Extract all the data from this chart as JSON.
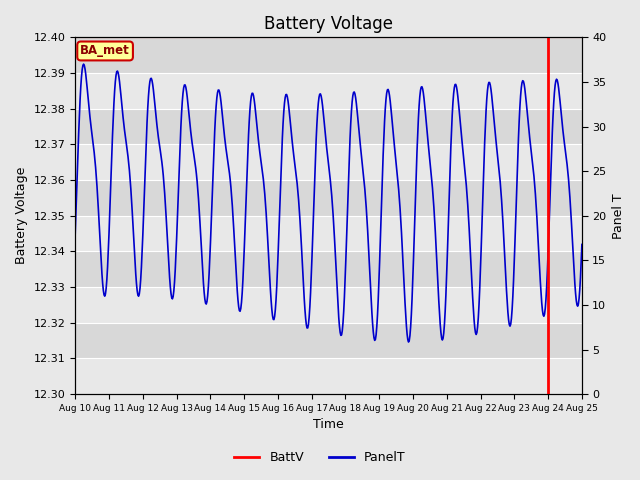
{
  "title": "Battery Voltage",
  "xlabel": "Time",
  "ylabel_left": "Battery Voltage",
  "ylabel_right": "Panel T",
  "ylim_left": [
    12.3,
    12.4
  ],
  "ylim_right": [
    0,
    40
  ],
  "yticks_left": [
    12.3,
    12.31,
    12.32,
    12.33,
    12.34,
    12.35,
    12.36,
    12.37,
    12.38,
    12.39,
    12.4
  ],
  "yticks_right": [
    0,
    5,
    10,
    15,
    20,
    25,
    30,
    35,
    40
  ],
  "xtick_labels": [
    "Aug 10",
    "Aug 11",
    "Aug 12",
    "Aug 13",
    "Aug 14",
    "Aug 15",
    "Aug 16",
    "Aug 17",
    "Aug 18",
    "Aug 19",
    "Aug 20",
    "Aug 21",
    "Aug 22",
    "Aug 23",
    "Aug 24",
    "Aug 25"
  ],
  "vline_color": "#ff0000",
  "batt_line_color": "#ff0000",
  "panel_line_color": "#0000cc",
  "bg_color": "#e8e8e8",
  "plot_bg_light": "#ebebeb",
  "plot_bg_dark": "#d8d8d8",
  "annotation_label": "BA_met",
  "annotation_bg": "#ffff99",
  "annotation_border": "#cc0000",
  "annotation_text_color": "#8b0000",
  "grid_color": "#ffffff",
  "title_fontsize": 12,
  "axis_label_fontsize": 9,
  "tick_fontsize": 8
}
